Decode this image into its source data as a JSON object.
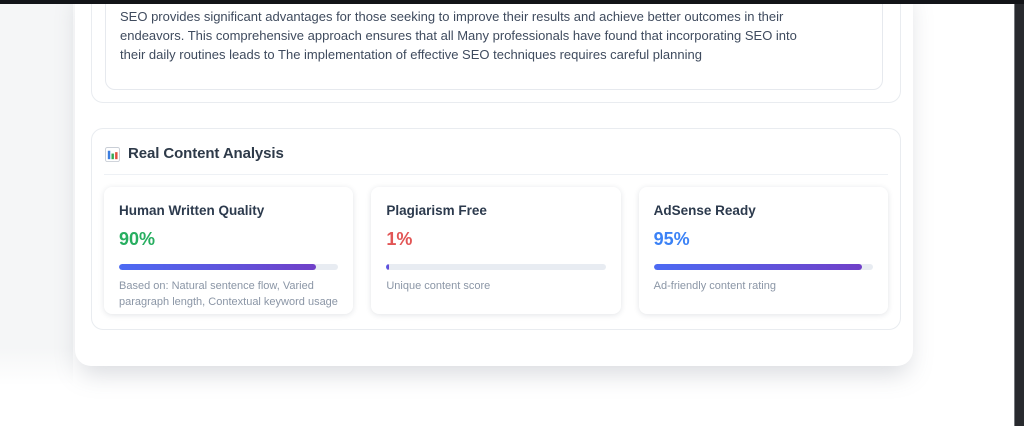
{
  "seo_card": {
    "paragraph": "SEO provides significant advantages for those seeking to improve their results and achieve better outcomes in their endeavors. This comprehensive approach ensures that all Many professionals have found that incorporating SEO into their daily routines leads to The implementation of effective SEO techniques requires careful planning"
  },
  "analysis": {
    "title": "Real Content Analysis",
    "icon": "bar-chart-icon",
    "colors": {
      "bar_track": "#e8ecf2",
      "bar_gradient_start": "#4c6af3",
      "bar_gradient_end": "#7040c8"
    },
    "cards": [
      {
        "title": "Human Written Quality",
        "value": "90%",
        "percent": 90,
        "value_color": "#27ae60",
        "description": "Based on: Natural sentence flow, Varied paragraph length, Contextual keyword usage"
      },
      {
        "title": "Plagiarism Free",
        "value": "1%",
        "percent": 1,
        "value_color": "#e25555",
        "description": "Unique content score"
      },
      {
        "title": "AdSense Ready",
        "value": "95%",
        "percent": 95,
        "value_color": "#3b82f6",
        "description": "Ad-friendly content rating"
      }
    ]
  }
}
